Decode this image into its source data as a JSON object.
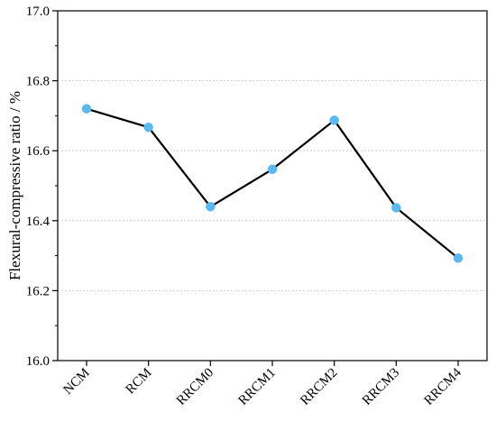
{
  "chart_data": {
    "type": "line",
    "title": "",
    "xlabel": "",
    "ylabel": "Flexural-compressive ratio / %",
    "categories": [
      "NCM",
      "RCM",
      "RRCM0",
      "RRCM1",
      "RRCM2",
      "RRCM3",
      "RRCM4"
    ],
    "series": [
      {
        "values": [
          16.72,
          16.667,
          16.44,
          16.547,
          16.687,
          16.437,
          16.293
        ]
      }
    ],
    "ylim": [
      16.0,
      17.0
    ],
    "yticks": [
      "16.0",
      "16.2",
      "16.4",
      "16.6",
      "16.8",
      "17.0"
    ],
    "grid": "horizontal-dotted",
    "line_color": "#000000",
    "marker_color": "#5AB9F0",
    "legend": "none"
  }
}
